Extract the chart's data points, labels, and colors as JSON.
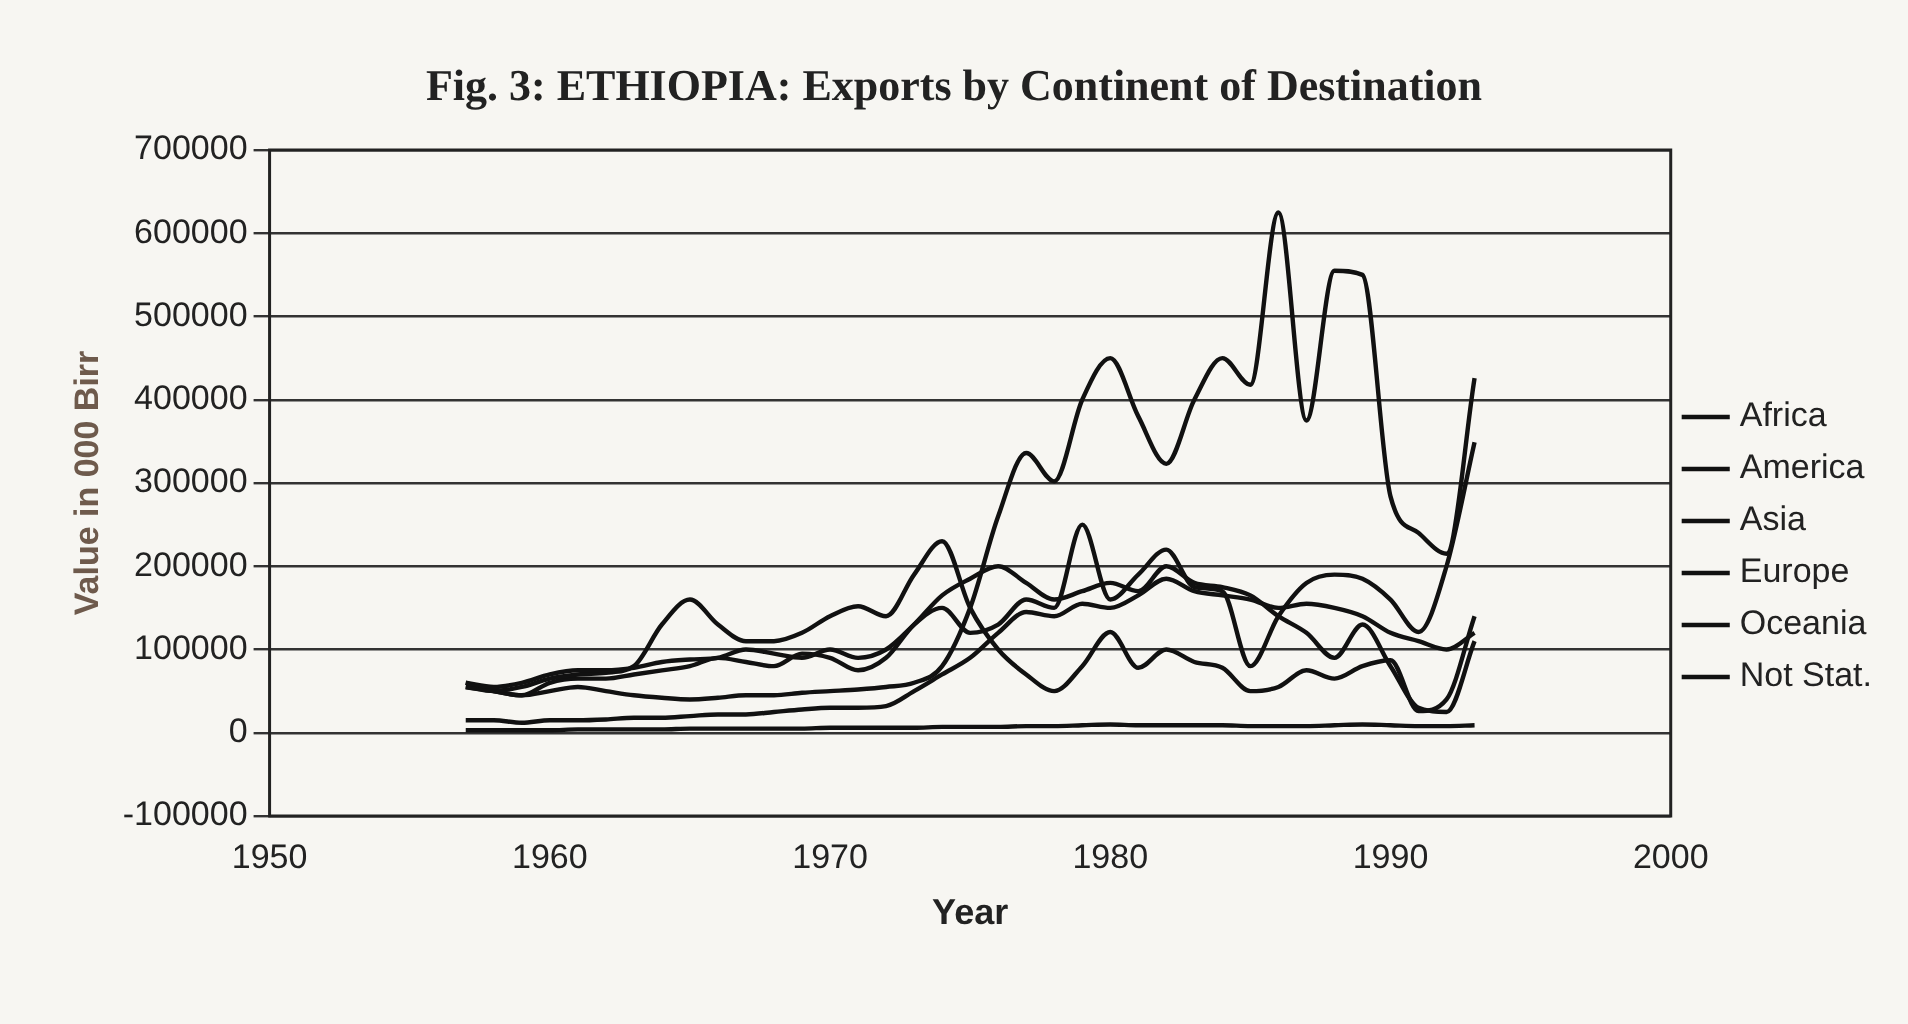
{
  "chart_data": {
    "type": "line",
    "title": "Fig. 3:  ETHIOPIA: Exports by Continent of Destination",
    "xlabel": "Year",
    "ylabel": "Value in 000 Birr",
    "x": [
      1957,
      1958,
      1959,
      1960,
      1961,
      1962,
      1963,
      1964,
      1965,
      1966,
      1967,
      1968,
      1969,
      1970,
      1971,
      1972,
      1973,
      1974,
      1975,
      1976,
      1977,
      1978,
      1979,
      1980,
      1981,
      1982,
      1983,
      1984,
      1985,
      1986,
      1987,
      1988,
      1989,
      1990,
      1991,
      1992,
      1993
    ],
    "series": [
      {
        "name": "Africa",
        "color": "#111111",
        "values": [
          15000,
          15000,
          12000,
          15000,
          15000,
          16000,
          18000,
          18000,
          20000,
          22000,
          22000,
          25000,
          28000,
          30000,
          30000,
          32000,
          50000,
          70000,
          90000,
          120000,
          145000,
          140000,
          155000,
          150000,
          165000,
          185000,
          170000,
          165000,
          160000,
          150000,
          155000,
          150000,
          140000,
          120000,
          110000,
          100000,
          120000
        ]
      },
      {
        "name": "America",
        "color": "#111111",
        "values": [
          60000,
          55000,
          60000,
          70000,
          75000,
          75000,
          78000,
          85000,
          88000,
          90000,
          100000,
          95000,
          90000,
          100000,
          90000,
          100000,
          130000,
          165000,
          185000,
          200000,
          180000,
          160000,
          170000,
          180000,
          170000,
          200000,
          180000,
          175000,
          165000,
          140000,
          120000,
          90000,
          130000,
          80000,
          30000,
          25000,
          110000
        ]
      },
      {
        "name": "Asia",
        "color": "#111111",
        "values": [
          55000,
          50000,
          55000,
          65000,
          70000,
          72000,
          80000,
          130000,
          160000,
          130000,
          110000,
          110000,
          120000,
          140000,
          152000,
          140000,
          190000,
          230000,
          150000,
          100000,
          70000,
          50000,
          80000,
          121000,
          78000,
          100000,
          85000,
          78000,
          50000,
          55000,
          75000,
          65000,
          80000,
          87000,
          26000,
          40000,
          140000
        ]
      },
      {
        "name": "Europe",
        "color": "#111111",
        "values": [
          60000,
          50000,
          45000,
          50000,
          55000,
          50000,
          45000,
          42000,
          40000,
          42000,
          45000,
          45000,
          48000,
          50000,
          52000,
          55000,
          60000,
          80000,
          150000,
          260000,
          336000,
          302000,
          400000,
          450000,
          380000,
          323000,
          400000,
          450000,
          418000,
          625000,
          375000,
          555000,
          550000,
          284000,
          240000,
          215000,
          426000
        ]
      },
      {
        "name": "Oceania",
        "color": "#111111",
        "values": [
          55000,
          50000,
          45000,
          60000,
          65000,
          65000,
          70000,
          75000,
          80000,
          90000,
          85000,
          80000,
          95000,
          90000,
          75000,
          90000,
          130000,
          150000,
          120000,
          130000,
          160000,
          150000,
          250000,
          160000,
          190000,
          220000,
          175000,
          170000,
          80000,
          140000,
          180000,
          190000,
          185000,
          160000,
          121000,
          200000,
          349000
        ]
      },
      {
        "name": "Not Stat.",
        "color": "#111111",
        "values": [
          3000,
          3000,
          3000,
          3000,
          4000,
          4000,
          4000,
          4000,
          5000,
          5000,
          5000,
          5000,
          5000,
          6000,
          6000,
          6000,
          6000,
          7000,
          7000,
          7000,
          8000,
          8000,
          9000,
          10000,
          9000,
          9000,
          9000,
          9000,
          8000,
          8000,
          8000,
          9000,
          10000,
          9000,
          8000,
          8000,
          9000
        ]
      }
    ],
    "xlim": [
      1950,
      2000
    ],
    "xticks": [
      1950,
      1960,
      1970,
      1980,
      1990,
      2000
    ],
    "ylim": [
      -100000,
      700000
    ],
    "yticks": [
      -100000,
      0,
      100000,
      200000,
      300000,
      400000,
      500000,
      600000,
      700000
    ],
    "grid": "y",
    "legend": "right",
    "marker": "none",
    "line_style": "solid"
  }
}
